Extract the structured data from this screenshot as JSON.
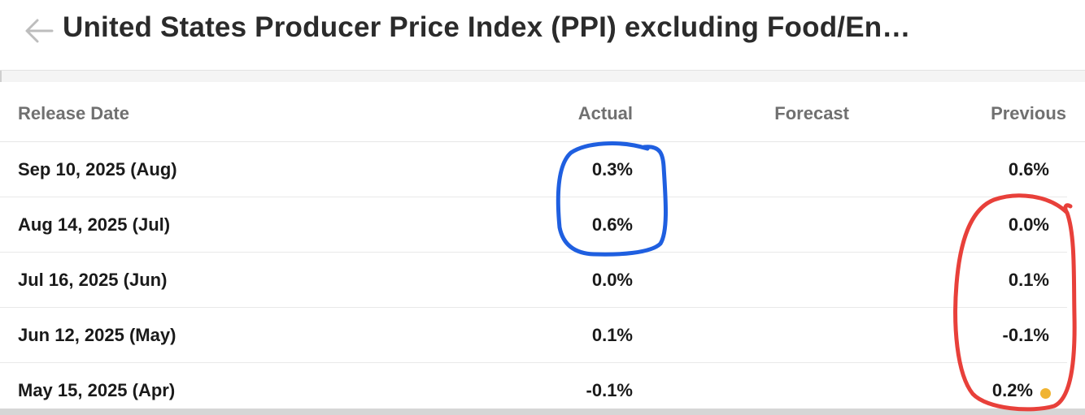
{
  "header": {
    "title": "United States Producer Price Index (PPI) excluding Food/En…",
    "back_icon": "arrow-left-icon"
  },
  "table": {
    "columns": {
      "release_date": "Release Date",
      "actual": "Actual",
      "forecast": "Forecast",
      "previous": "Previous"
    },
    "rows": [
      {
        "date": "Sep 10, 2025 (Aug)",
        "actual": "0.3%",
        "forecast": "",
        "previous": "0.6%"
      },
      {
        "date": "Aug 14, 2025 (Jul)",
        "actual": "0.6%",
        "forecast": "",
        "previous": "0.0%"
      },
      {
        "date": "Jul 16, 2025 (Jun)",
        "actual": "0.0%",
        "forecast": "",
        "previous": "0.1%"
      },
      {
        "date": "Jun 12, 2025 (May)",
        "actual": "0.1%",
        "forecast": "",
        "previous": "-0.1%"
      },
      {
        "date": "May 15, 2025 (Apr)",
        "actual": "-0.1%",
        "forecast": "",
        "previous": "0.2%"
      }
    ]
  },
  "colors": {
    "revision_dot": "#f0b432",
    "annotation_blue": "#1f5fe0",
    "annotation_red": "#e8403a"
  }
}
